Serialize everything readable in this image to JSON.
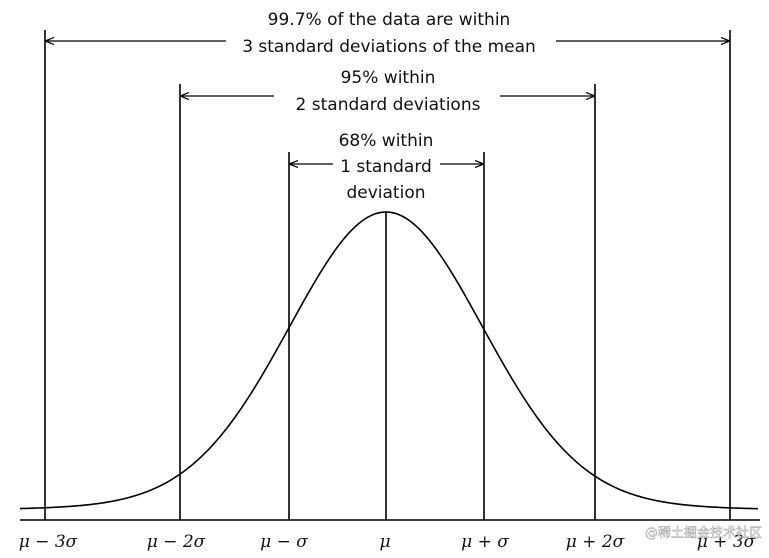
{
  "annotations": {
    "three_sd": {
      "line1": "99.7% of the data are within",
      "line2": "3 standard deviations of the mean"
    },
    "two_sd": {
      "line1": "95% within",
      "line2": "2 standard deviations"
    },
    "one_sd": {
      "line1": "68% within",
      "line2": "1 standard",
      "line3": "deviation"
    }
  },
  "axis_labels": {
    "minus3": "μ − 3σ",
    "minus2": "μ − 2σ",
    "minus1": "μ − σ",
    "mean": "μ",
    "plus1": "μ + σ",
    "plus2": "μ + 2σ",
    "plus3": "μ + 3σ"
  },
  "watermark": "@稀土掘金技术社区",
  "colors": {
    "stroke": "#000000",
    "background": "#ffffff"
  }
}
